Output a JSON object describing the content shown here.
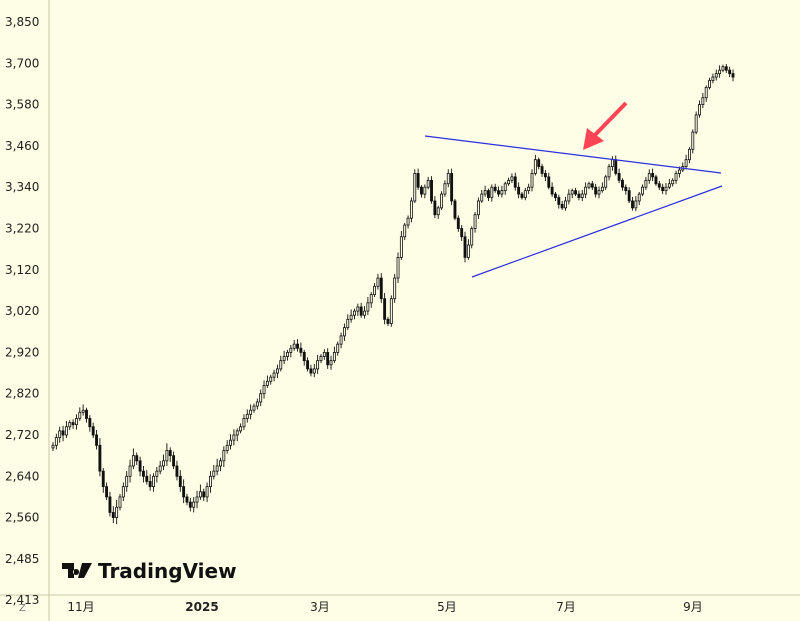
{
  "watermark": "TradingView",
  "corner_label": "Z",
  "chart_data": {
    "type": "candlestick",
    "y_ticks": [
      "3,850",
      "3,700",
      "3,580",
      "3,460",
      "3,340",
      "3,220",
      "3,120",
      "3,020",
      "2,920",
      "2,820",
      "2,720",
      "2,640",
      "2,560",
      "2,485",
      "2,413"
    ],
    "x_ticks": [
      {
        "label": "11月",
        "bold": false
      },
      {
        "label": "2025",
        "bold": true
      },
      {
        "label": "3月",
        "bold": false
      },
      {
        "label": "5月",
        "bold": false
      },
      {
        "label": "7月",
        "bold": false
      },
      {
        "label": "9月",
        "bold": false
      }
    ],
    "closes": [
      2700,
      2715,
      2730,
      2720,
      2740,
      2750,
      2745,
      2760,
      2775,
      2780,
      2760,
      2740,
      2720,
      2700,
      2650,
      2620,
      2600,
      2570,
      2560,
      2580,
      2600,
      2620,
      2640,
      2660,
      2680,
      2670,
      2650,
      2640,
      2630,
      2620,
      2640,
      2650,
      2660,
      2670,
      2690,
      2680,
      2660,
      2640,
      2620,
      2600,
      2590,
      2580,
      2590,
      2600,
      2610,
      2600,
      2620,
      2640,
      2650,
      2660,
      2670,
      2690,
      2700,
      2710,
      2720,
      2730,
      2740,
      2760,
      2770,
      2780,
      2790,
      2800,
      2820,
      2840,
      2850,
      2860,
      2870,
      2880,
      2900,
      2910,
      2920,
      2930,
      2940,
      2930,
      2920,
      2900,
      2880,
      2870,
      2880,
      2900,
      2910,
      2920,
      2890,
      2900,
      2920,
      2940,
      2960,
      2980,
      3000,
      3010,
      3020,
      3030,
      3010,
      3020,
      3040,
      3060,
      3080,
      3100,
      3050,
      3000,
      2990,
      3050,
      3100,
      3150,
      3200,
      3230,
      3250,
      3300,
      3380,
      3340,
      3320,
      3340,
      3360,
      3300,
      3260,
      3280,
      3320,
      3350,
      3380,
      3300,
      3250,
      3220,
      3200,
      3150,
      3180,
      3220,
      3260,
      3300,
      3320,
      3330,
      3310,
      3340,
      3330,
      3320,
      3330,
      3350,
      3360,
      3370,
      3340,
      3320,
      3310,
      3330,
      3340,
      3380,
      3420,
      3400,
      3380,
      3370,
      3340,
      3320,
      3310,
      3290,
      3280,
      3300,
      3320,
      3330,
      3320,
      3310,
      3320,
      3340,
      3350,
      3340,
      3320,
      3330,
      3340,
      3370,
      3400,
      3420,
      3380,
      3360,
      3340,
      3330,
      3300,
      3280,
      3300,
      3320,
      3340,
      3360,
      3380,
      3370,
      3350,
      3340,
      3330,
      3340,
      3350,
      3360,
      3380,
      3390,
      3400,
      3420,
      3450,
      3500,
      3550,
      3580,
      3600,
      3630,
      3650,
      3660,
      3670,
      3680,
      3690,
      3680,
      3670,
      3660
    ]
  }
}
